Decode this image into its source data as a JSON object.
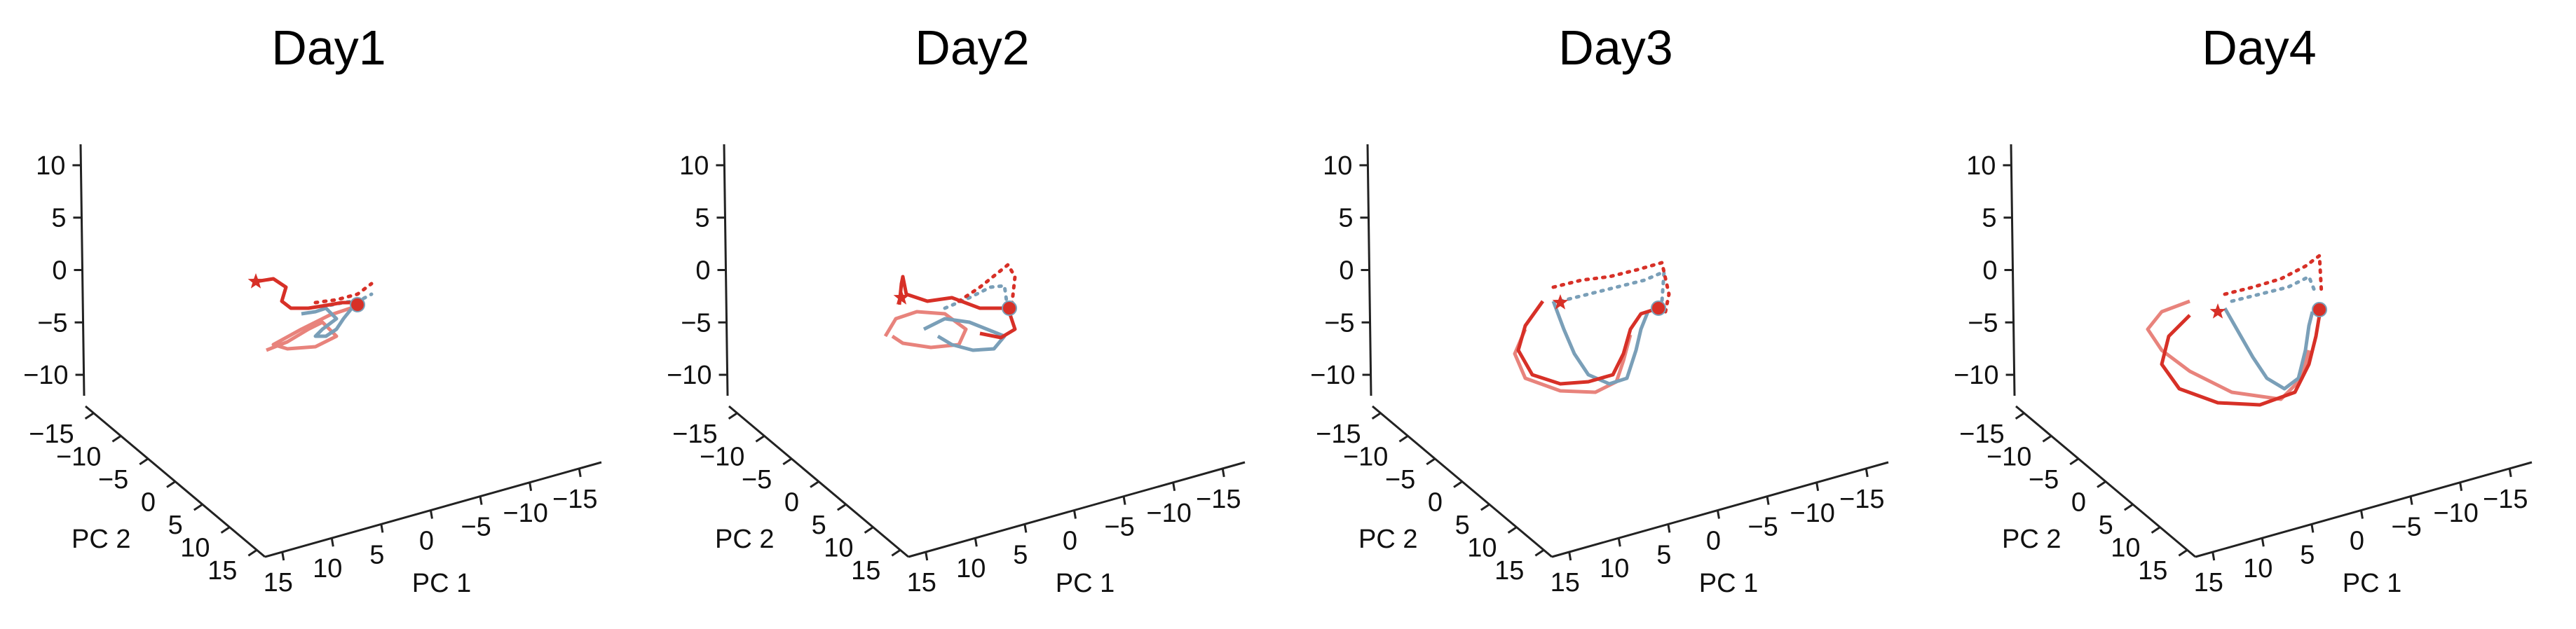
{
  "chart_data": [
    {
      "type": "line",
      "title": "Day1",
      "zlim": [
        -12,
        12
      ],
      "z_ticks": [
        10,
        5,
        0,
        -5,
        -10
      ],
      "xlabel": "PC 1",
      "x_ticks": [
        15,
        10,
        5,
        0,
        -5,
        -10,
        -15
      ],
      "ylabel": "PC 2",
      "y_ticks": [
        -15,
        -10,
        -5,
        0,
        5,
        10,
        15
      ],
      "grid": false
    },
    {
      "type": "line",
      "title": "Day2",
      "zlim": [
        -12,
        12
      ],
      "z_ticks": [
        10,
        5,
        0,
        -5,
        -10
      ],
      "xlabel": "PC 1",
      "x_ticks": [
        15,
        10,
        5,
        0,
        -5,
        -10,
        -15
      ],
      "ylabel": "PC 2",
      "y_ticks": [
        -15,
        -10,
        -5,
        0,
        5,
        10,
        15
      ],
      "grid": false
    },
    {
      "type": "line",
      "title": "Day3",
      "zlim": [
        -12,
        12
      ],
      "z_ticks": [
        10,
        5,
        0,
        -5,
        -10
      ],
      "xlabel": "PC 1",
      "x_ticks": [
        15,
        10,
        5,
        0,
        -5,
        -10,
        -15
      ],
      "ylabel": "PC 2",
      "y_ticks": [
        -15,
        -10,
        -5,
        0,
        5,
        10,
        15
      ],
      "grid": false
    },
    {
      "type": "line",
      "title": "Day4",
      "zlim": [
        -12,
        12
      ],
      "z_ticks": [
        10,
        5,
        0,
        -5,
        -10
      ],
      "xlabel": "PC 1",
      "x_ticks": [
        15,
        10,
        5,
        0,
        -5,
        -10,
        -15
      ],
      "ylabel": "PC 2",
      "y_ticks": [
        -15,
        -10,
        -5,
        0,
        5,
        10,
        15
      ],
      "grid": false
    }
  ],
  "colors": {
    "red": "#d73027",
    "light_red": "#e8837c",
    "blue_gray": "#7a9fb8",
    "axis": "#222222"
  }
}
